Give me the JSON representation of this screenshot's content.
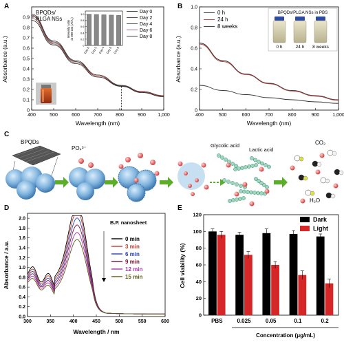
{
  "colors": {
    "dark": "#000000",
    "light": "#d62728",
    "mol_green": "#46a882",
    "red_ball": "#e05a5a",
    "sphere": "#7fb3dd"
  },
  "chart_data": [
    {
      "panel": "A",
      "type": "line",
      "label": "BPQDs/ PLGA NSs",
      "title_lines": [
        "BPQDs/",
        "PLGA NSs"
      ],
      "xlabel": "Wavelength (nm)",
      "ylabel": "Absorbance (a.u.)",
      "xlim": [
        400,
        1000
      ],
      "ylim": [
        0,
        1.0
      ],
      "xticks": [
        "400",
        "500",
        "600",
        "700",
        "800",
        "900",
        "1,000"
      ],
      "yticks": [
        "0",
        "0.1",
        "0.2",
        "0.3",
        "0.4",
        "0.5",
        "0.6",
        "0.7",
        "0.8",
        "0.9"
      ],
      "marker_line": 808,
      "series": [
        {
          "name": "Day 0",
          "x": [
            400,
            500,
            600,
            700,
            808,
            900,
            1000
          ],
          "y": [
            0.93,
            0.67,
            0.48,
            0.34,
            0.24,
            0.18,
            0.14
          ]
        },
        {
          "name": "Day 2",
          "x": [
            400,
            500,
            600,
            700,
            808,
            900,
            1000
          ],
          "y": [
            0.92,
            0.66,
            0.47,
            0.34,
            0.235,
            0.18,
            0.14
          ]
        },
        {
          "name": "Day 4",
          "x": [
            400,
            500,
            600,
            700,
            808,
            900,
            1000
          ],
          "y": [
            0.91,
            0.65,
            0.47,
            0.33,
            0.235,
            0.175,
            0.135
          ]
        },
        {
          "name": "Day 6",
          "x": [
            400,
            500,
            600,
            700,
            808,
            900,
            1000
          ],
          "y": [
            0.89,
            0.64,
            0.46,
            0.33,
            0.23,
            0.175,
            0.135
          ]
        },
        {
          "name": "Day 8",
          "x": [
            400,
            500,
            600,
            700,
            808,
            900,
            1000
          ],
          "y": [
            0.87,
            0.63,
            0.45,
            0.32,
            0.23,
            0.17,
            0.13
          ]
        }
      ],
      "inset": {
        "type": "bar",
        "ylabel_lines": [
          "Intensity ratio",
          "at 808 nm (A/A₀)"
        ],
        "categories": [
          "Day 0",
          "Day 2",
          "Day 4",
          "Day 6",
          "Day 8"
        ],
        "values": [
          1.0,
          0.99,
          0.98,
          0.97,
          0.96
        ],
        "yticks": [
          "0",
          "0.2",
          "0.4",
          "0.6",
          "0.8",
          "1.0"
        ],
        "ylim": [
          0,
          1.1
        ]
      }
    },
    {
      "panel": "B",
      "type": "line",
      "xlabel": "Wavelength (nm)",
      "ylabel": "Absorbance (a.u.)",
      "xlim": [
        400,
        1000
      ],
      "ylim": [
        0,
        1.0
      ],
      "xticks": [
        "400",
        "500",
        "600",
        "700",
        "800",
        "900",
        "1,000"
      ],
      "yticks": [
        "0",
        "0.2",
        "0.4",
        "0.6",
        "0.8",
        "1.0"
      ],
      "photo_label": "BPQDs/PLGA NSs in PBS",
      "vial_labels": [
        "0 h",
        "24 h",
        "8 weeks"
      ],
      "series": [
        {
          "name": "0 h",
          "x": [
            400,
            500,
            600,
            700,
            800,
            900,
            1000
          ],
          "y": [
            0.65,
            0.48,
            0.35,
            0.26,
            0.19,
            0.14,
            0.1
          ]
        },
        {
          "name": "24 h",
          "x": [
            400,
            500,
            600,
            700,
            800,
            900,
            1000
          ],
          "y": [
            0.64,
            0.47,
            0.345,
            0.255,
            0.185,
            0.135,
            0.095
          ]
        },
        {
          "name": "8 weeks",
          "x": [
            400,
            500,
            600,
            700,
            800,
            900,
            1000
          ],
          "y": [
            0.24,
            0.19,
            0.15,
            0.12,
            0.1,
            0.08,
            0.065
          ]
        }
      ]
    },
    {
      "panel": "D",
      "type": "line",
      "label": "B.P. nanosheet",
      "xlabel": "Wavelength / nm",
      "ylabel": "Absorbance / a.u.",
      "xlim": [
        300,
        600
      ],
      "ylim": [
        0,
        2.1
      ],
      "xticks": [
        "300",
        "350",
        "400",
        "450",
        "500",
        "550",
        "600"
      ],
      "yticks": [
        "0.0",
        "0.2",
        "0.4",
        "0.6",
        "0.8",
        "1.0",
        "1.2",
        "1.4",
        "1.6",
        "1.8",
        "2.0"
      ],
      "series": [
        {
          "name": "0 min",
          "color": "#000000",
          "peak": 2.0,
          "shoulder": 0.94
        },
        {
          "name": "3 min",
          "color": "#c0392b",
          "peak": 1.87,
          "shoulder": 0.9
        },
        {
          "name": "6 min",
          "color": "#2a3fb8",
          "peak": 1.74,
          "shoulder": 0.86
        },
        {
          "name": "9 min",
          "color": "#7a1030",
          "peak": 1.61,
          "shoulder": 0.82
        },
        {
          "name": "12 min",
          "color": "#b030b0",
          "peak": 1.47,
          "shoulder": 0.78
        },
        {
          "name": "15 min",
          "color": "#5a5a10",
          "peak": 1.34,
          "shoulder": 0.74
        }
      ]
    },
    {
      "panel": "E",
      "type": "bar",
      "xlabel": "Concentration (μg/mL)",
      "ylabel": "Cell viability (%)",
      "ylim": [
        0,
        120
      ],
      "yticks": [
        "0",
        "20",
        "40",
        "60",
        "80",
        "100",
        "120"
      ],
      "categories": [
        "PBS",
        "0.025",
        "0.05",
        "0.1",
        "0.2"
      ],
      "series": [
        {
          "name": "Dark",
          "values": [
            100,
            96,
            98,
            97,
            94
          ],
          "errors": [
            3,
            3,
            5,
            4,
            3
          ]
        },
        {
          "name": "Light",
          "values": [
            96,
            72,
            60,
            48,
            38
          ],
          "errors": [
            4,
            4,
            4,
            5,
            5
          ]
        }
      ]
    }
  ],
  "panel_letters": [
    "A",
    "B",
    "C",
    "D",
    "E"
  ],
  "schematic": {
    "bpqds": "BPQDs",
    "po4": "PO₄³⁻",
    "glycolic": "Glycolic acid",
    "lactic": "Lactic acid",
    "co2": "CO₂",
    "h2o": "H₂O"
  }
}
